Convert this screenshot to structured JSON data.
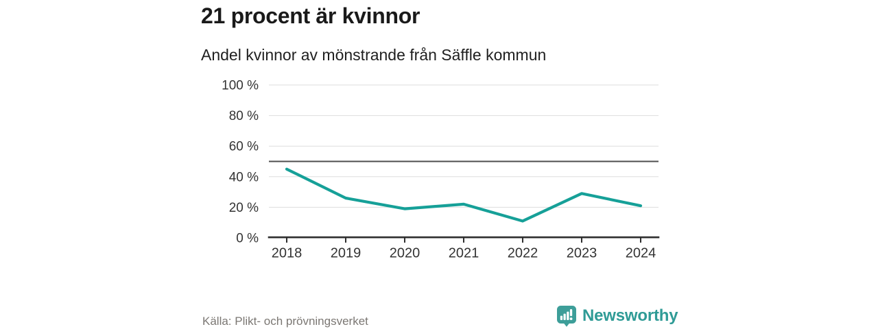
{
  "header": {
    "title": "21 procent är kvinnor",
    "subtitle": "Andel kvinnor av mönstrande från Säffle kommun"
  },
  "footer": {
    "source": "Källa: Plikt- och prövningsverket",
    "brand": "Newsworthy"
  },
  "colors": {
    "line": "#16A098",
    "grid": "#DDDDDD",
    "reference_line": "#4D4D4D",
    "axis": "#2E2E2E",
    "axis_text": "#333333",
    "title_text": "#1A1A1A",
    "subtitle_text": "#1F1F1F",
    "source_text": "#7B7773",
    "brand_teal": "#2F9B96",
    "logo_teal": "#3D9E99"
  },
  "chart_data": {
    "type": "line",
    "title": "21 procent är kvinnor",
    "subtitle": "Andel kvinnor av mönstrande från Säffle kommun",
    "x": [
      2018,
      2019,
      2020,
      2021,
      2022,
      2023,
      2024
    ],
    "series": [
      {
        "name": "Andel kvinnor av mönstrande",
        "values": [
          45,
          26,
          19,
          22,
          11,
          29,
          21
        ]
      }
    ],
    "unit": "%",
    "xlabel": "",
    "ylabel": "",
    "ylim": [
      0,
      100
    ],
    "yticks": [
      0,
      20,
      40,
      60,
      80,
      100
    ],
    "ytick_format": "{v} %",
    "reference_line": 50,
    "grid": "horizontal",
    "legend": "none"
  }
}
